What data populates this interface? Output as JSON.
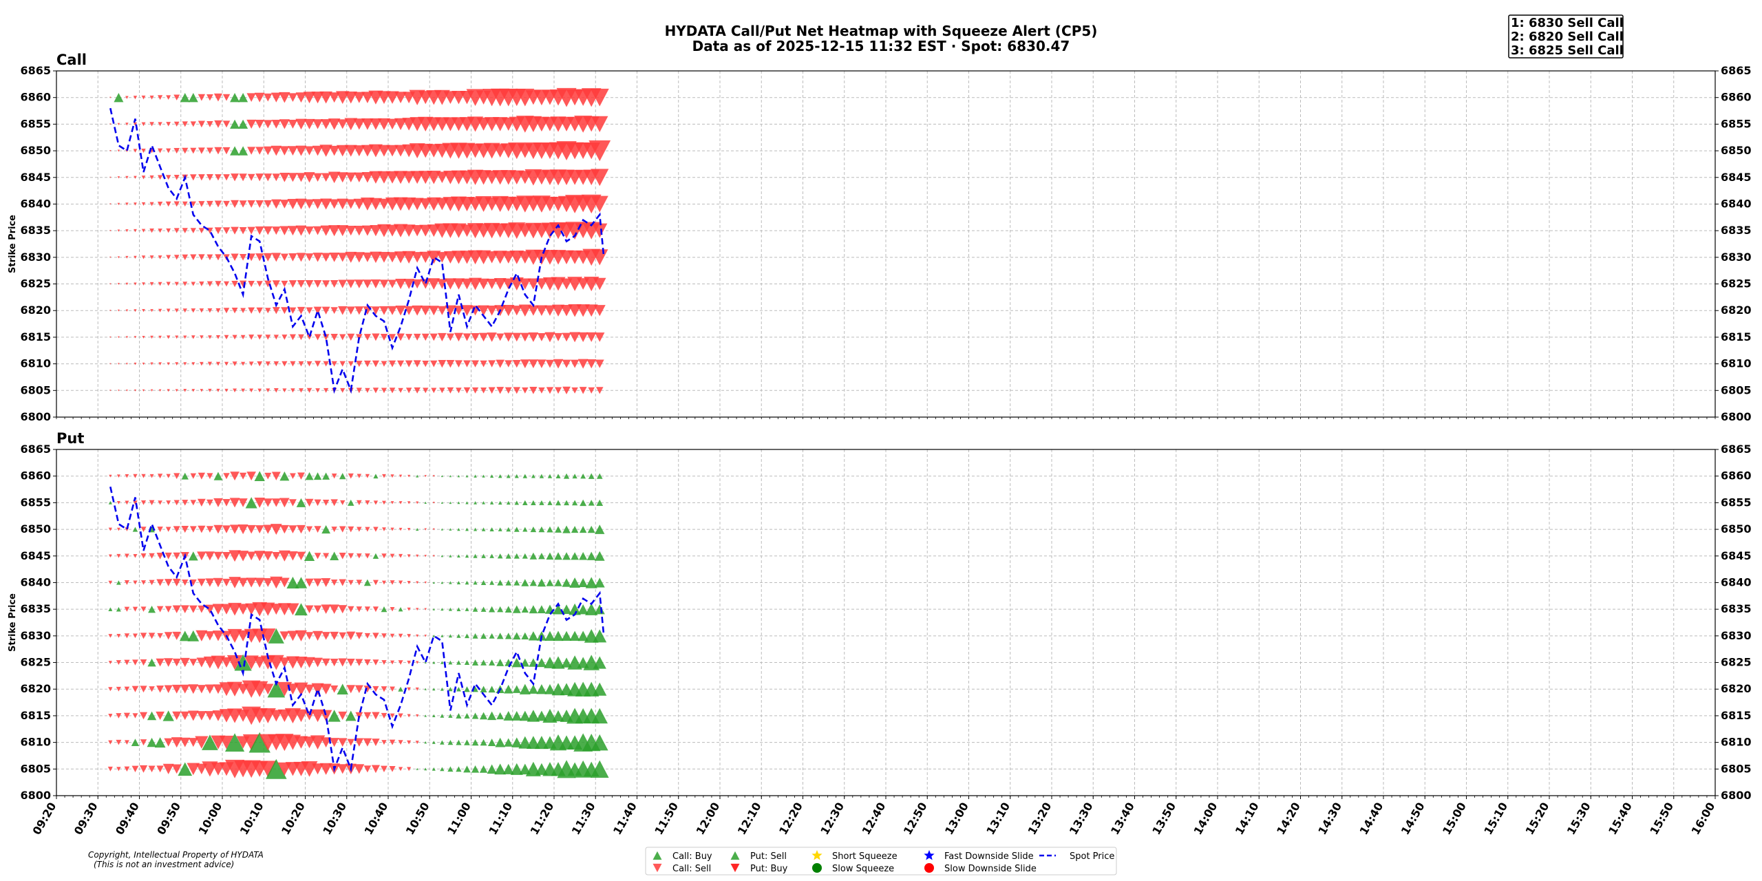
{
  "title_line1": "HYDATA Call/Put Net Heatmap with Squeeze Alert (CP5)",
  "title_line2": "Data as of 2025-12-15 11:32 EST · Spot: 6830.47",
  "top_strikes": [
    "1: 6830 Sell Call",
    "2: 6820 Sell Call",
    "3: 6825 Sell Call"
  ],
  "copyright_line1": "Copyright, Intellectual Property of HYDATA",
  "copyright_line2": "(This is not an investment advice)",
  "colors": {
    "green": "#2ca02c",
    "red": "#ff3b3b",
    "spot": "#0000ee",
    "grid": "#bbbbbb"
  },
  "legend": [
    {
      "label": "Call: Buy",
      "marker": "triangle-up",
      "color": "#2ca02c"
    },
    {
      "label": "Call: Sell",
      "marker": "triangle-down",
      "color": "#ff3b3b"
    },
    {
      "label": "Put: Sell",
      "marker": "triangle-up",
      "color": "#2ca02c"
    },
    {
      "label": "Put: Buy",
      "marker": "triangle-down",
      "color": "#ff0000"
    },
    {
      "label": "Short Squeeze",
      "marker": "star",
      "color": "#ffd700"
    },
    {
      "label": "Slow Squeeze",
      "marker": "circle",
      "color": "#008000"
    },
    {
      "label": "Fast Downside Slide",
      "marker": "star",
      "color": "#0000ff"
    },
    {
      "label": "Slow Downside Slide",
      "marker": "circle",
      "color": "#ff0000"
    },
    {
      "label": "Spot Price",
      "marker": "dashed-line",
      "color": "#0000ee"
    }
  ],
  "chart_data": [
    {
      "type": "scatter",
      "panel": "Call",
      "title": "Call",
      "ylabel": "Strike Price",
      "ylim": [
        6800,
        6865
      ],
      "yticks": [
        "6800",
        "6805",
        "6810",
        "6815",
        "6820",
        "6825",
        "6830",
        "6835",
        "6840",
        "6845",
        "6850",
        "6855",
        "6860",
        "6865"
      ],
      "xlim": [
        "09:20",
        "16:00"
      ],
      "xticks": [
        "09:20",
        "09:30",
        "09:40",
        "09:50",
        "10:00",
        "10:10",
        "10:20",
        "10:30",
        "10:40",
        "10:50",
        "11:00",
        "11:10",
        "11:20",
        "11:30",
        "11:40",
        "11:50",
        "12:00",
        "12:10",
        "12:20",
        "12:30",
        "12:40",
        "12:50",
        "13:00",
        "13:10",
        "13:20",
        "13:30",
        "13:40",
        "13:50",
        "14:00",
        "14:10",
        "14:20",
        "14:30",
        "14:40",
        "14:50",
        "15:00",
        "15:10",
        "15:20",
        "15:30",
        "15:40",
        "15:50",
        "16:00"
      ],
      "grid": true,
      "strikes": [
        6805,
        6810,
        6815,
        6820,
        6825,
        6830,
        6835,
        6840,
        6845,
        6850,
        6855,
        6860
      ],
      "marker_times": [
        "09:33",
        "11:32"
      ],
      "marker_step_min": 2,
      "series": [
        {
          "name": "Call: Sell",
          "direction": "down",
          "strike_magnitude_at_close": {
            "6805": 0.35,
            "6810": 0.45,
            "6815": 0.5,
            "6820": 0.65,
            "6825": 0.7,
            "6830": 0.85,
            "6835": 0.9,
            "6840": 0.95,
            "6845": 0.9,
            "6850": 1.0,
            "6855": 0.95,
            "6860": 1.0
          }
        },
        {
          "name": "Call: Buy",
          "direction": "up",
          "points": [
            [
              "09:35",
              6860
            ],
            [
              "09:52",
              6860
            ],
            [
              "10:04",
              6860
            ],
            [
              "10:04",
              6855
            ],
            [
              "10:04",
              6850
            ]
          ]
        }
      ]
    },
    {
      "type": "scatter",
      "panel": "Put",
      "title": "Put",
      "ylabel": "Strike Price",
      "ylim": [
        6800,
        6865
      ],
      "yticks": [
        "6800",
        "6805",
        "6810",
        "6815",
        "6820",
        "6825",
        "6830",
        "6835",
        "6840",
        "6845",
        "6850",
        "6855",
        "6860",
        "6865"
      ],
      "xlim": [
        "09:20",
        "16:00"
      ],
      "grid": true,
      "strikes": [
        6805,
        6810,
        6815,
        6820,
        6825,
        6830,
        6835,
        6840,
        6845,
        6850,
        6855,
        6860
      ],
      "series": [
        {
          "name": "Put: Buy",
          "direction": "down",
          "window": [
            "09:33",
            "10:48"
          ]
        },
        {
          "name": "Put: Sell",
          "direction": "up",
          "window": [
            "10:40",
            "11:32"
          ]
        }
      ]
    }
  ],
  "spot_series": {
    "name": "Spot Price",
    "x": [
      "09:33",
      "09:35",
      "09:37",
      "09:39",
      "09:41",
      "09:43",
      "09:45",
      "09:47",
      "09:49",
      "09:51",
      "09:53",
      "09:55",
      "09:57",
      "09:59",
      "10:01",
      "10:03",
      "10:05",
      "10:07",
      "10:09",
      "10:11",
      "10:13",
      "10:15",
      "10:17",
      "10:19",
      "10:21",
      "10:23",
      "10:25",
      "10:27",
      "10:29",
      "10:31",
      "10:33",
      "10:35",
      "10:37",
      "10:39",
      "10:41",
      "10:43",
      "10:45",
      "10:47",
      "10:49",
      "10:51",
      "10:53",
      "10:55",
      "10:57",
      "10:59",
      "11:01",
      "11:03",
      "11:05",
      "11:07",
      "11:09",
      "11:11",
      "11:13",
      "11:15",
      "11:17",
      "11:19",
      "11:21",
      "11:23",
      "11:25",
      "11:27",
      "11:29",
      "11:31",
      "11:32"
    ],
    "y": [
      6858,
      6851,
      6850,
      6856,
      6846,
      6851,
      6847,
      6843,
      6841,
      6845,
      6838,
      6836,
      6835,
      6832,
      6830,
      6827,
      6823,
      6834,
      6833,
      6826,
      6821,
      6824,
      6817,
      6819,
      6815,
      6820,
      6815,
      6805,
      6809,
      6805,
      6815,
      6821,
      6819,
      6818,
      6813,
      6817,
      6822,
      6828,
      6825,
      6830,
      6829,
      6816,
      6823,
      6817,
      6821,
      6819,
      6817,
      6820,
      6824,
      6827,
      6823,
      6821,
      6830,
      6834,
      6836,
      6833,
      6834,
      6837,
      6836,
      6838,
      6830
    ]
  }
}
